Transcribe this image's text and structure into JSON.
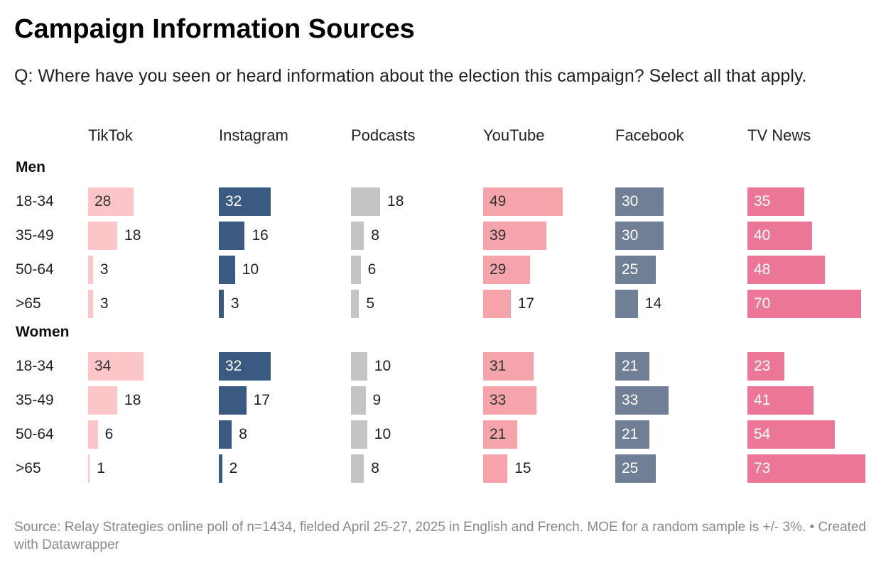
{
  "title": "Campaign Information Sources",
  "subtitle": "Q: Where have you seen or heard information about the election this campaign? Select all that apply.",
  "footer": {
    "source": "Source: Relay Strategies online poll of n=1434, fielded April 25-27, 2025 in English and French. MOE for a random sample is +/- 3%.",
    "credit": " • Created with Datawrapper"
  },
  "chart_data": {
    "type": "bar",
    "title": "Campaign Information Sources",
    "unit": "percent",
    "columns": [
      "TikTok",
      "Instagram",
      "Podcasts",
      "YouTube",
      "Facebook",
      "TV News"
    ],
    "colors": [
      "#fcc6c9",
      "#3b5a82",
      "#c4c4c4",
      "#f5a4ab",
      "#707f96",
      "#ec7695"
    ],
    "label_colors": [
      "#333333",
      "#ffffff",
      "#333333",
      "#333333",
      "#ffffff",
      "#ffffff"
    ],
    "groups": [
      {
        "name": "Men",
        "rows": [
          {
            "label": "18-34",
            "values": [
              28,
              32,
              18,
              49,
              30,
              35
            ]
          },
          {
            "label": "35-49",
            "values": [
              18,
              16,
              8,
              39,
              30,
              40
            ]
          },
          {
            "label": "50-64",
            "values": [
              3,
              10,
              6,
              29,
              25,
              48
            ]
          },
          {
            "label": ">65",
            "values": [
              3,
              3,
              5,
              17,
              14,
              70
            ]
          }
        ]
      },
      {
        "name": "Women",
        "rows": [
          {
            "label": "18-34",
            "values": [
              34,
              32,
              10,
              31,
              21,
              23
            ]
          },
          {
            "label": "35-49",
            "values": [
              18,
              17,
              9,
              33,
              33,
              41
            ]
          },
          {
            "label": "50-64",
            "values": [
              6,
              8,
              10,
              21,
              21,
              54
            ]
          },
          {
            "label": ">65",
            "values": [
              1,
              2,
              8,
              15,
              25,
              73
            ]
          }
        ]
      }
    ]
  }
}
